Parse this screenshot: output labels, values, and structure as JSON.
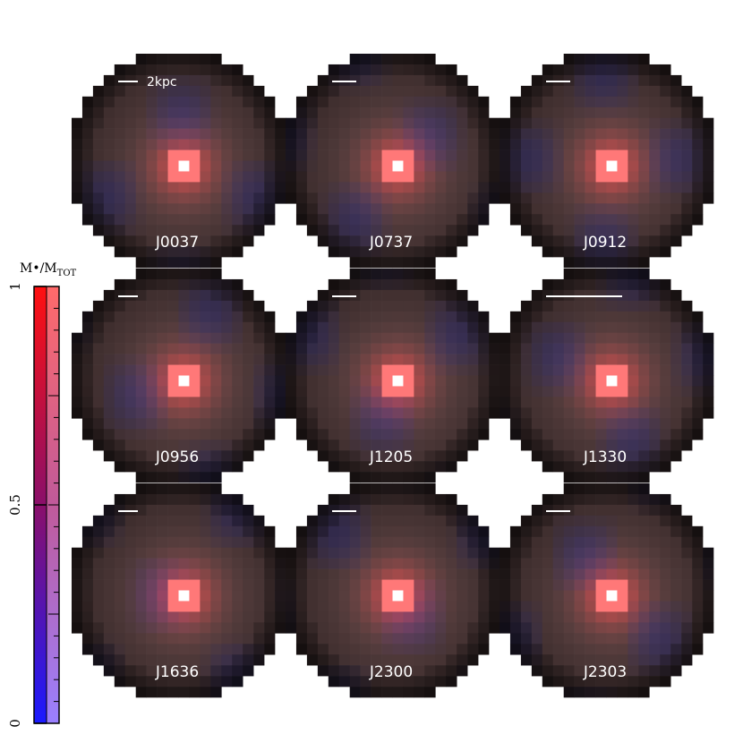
{
  "panels": [
    {
      "name": "J0037",
      "scale_label": "2kpc"
    },
    {
      "name": "J0737"
    },
    {
      "name": "J0912"
    },
    {
      "name": "J0956"
    },
    {
      "name": "J1205"
    },
    {
      "name": "J1330"
    },
    {
      "name": "J1636"
    },
    {
      "name": "J2300"
    },
    {
      "name": "J2303"
    }
  ],
  "colorbar": {
    "label": "M•/M",
    "label_sub": "TOT",
    "lim": [
      0,
      1
    ],
    "ticks": [
      0,
      0.5,
      1
    ]
  }
}
